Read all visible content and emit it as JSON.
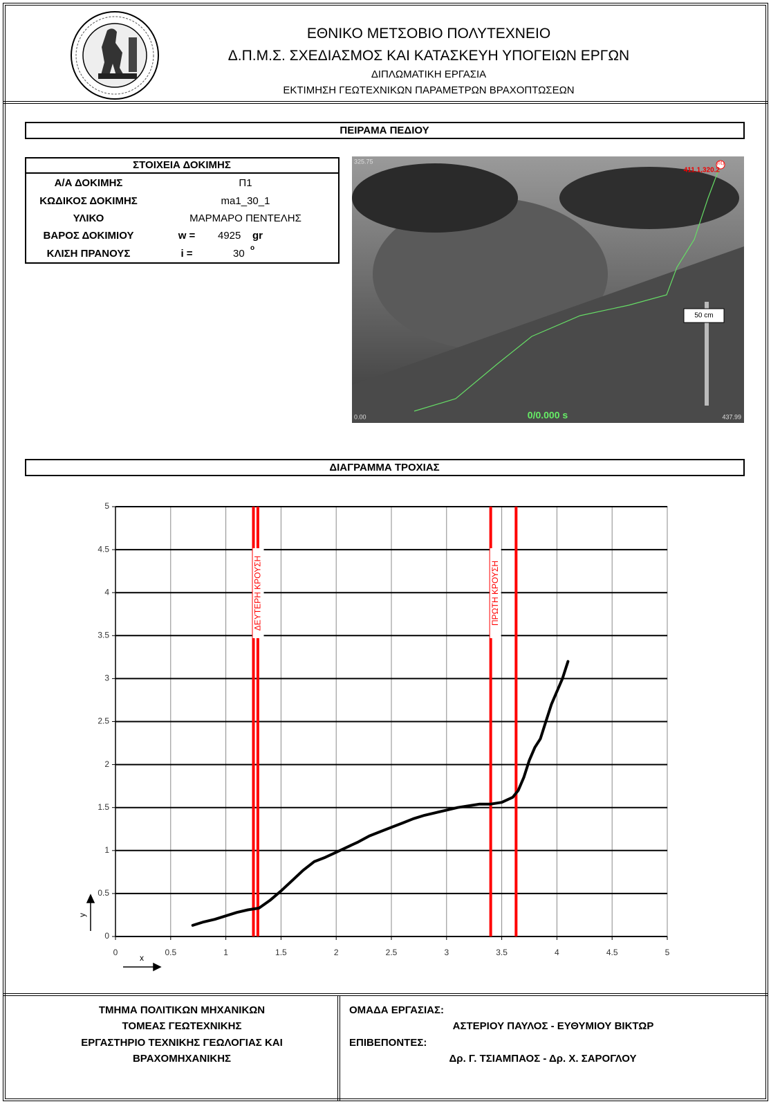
{
  "header": {
    "lines": [
      "ΕΘΝΙΚΟ ΜΕΤΣΟΒΙΟ ΠΟΛΥΤΕΧΝΕΙΟ",
      "Δ.Π.Μ.Σ. ΣΧΕΔΙΑΣΜΟΣ ΚΑΙ ΚΑΤΑΣΚΕΥΗ ΥΠΟΓΕΙΩΝ ΕΡΓΩΝ",
      "ΔΙΠΛΩΜΑΤΙΚΗ ΕΡΓΑΣΙΑ",
      "ΕΚΤΙΜΗΣΗ ΓΕΩΤΕΧΝΙΚΩΝ ΠΑΡΑΜΕΤΡΩΝ ΒΡΑΧΟΠΤΩΣΕΩΝ"
    ]
  },
  "field_section": {
    "title": "ΠΕΙΡΑΜΑ ΠΕΔΙΟΥ"
  },
  "test_table": {
    "title": "ΣΤΟΙΧΕΙΑ ΔΟΚΙΜΗΣ",
    "rows": [
      [
        "Α/Α ΔΟΚΙΜΗΣ",
        "Π1"
      ],
      [
        "ΚΩΔΙΚΟΣ ΔΟΚΙΜΗΣ",
        "ma1_30_1"
      ],
      [
        "ΥΛΙΚΟ",
        "ΜΑΡΜΑΡΟ ΠΕΝΤΕΛΗΣ"
      ],
      [
        "ΒΑΡΟΣ ΔΟΚΙΜΙΟΥ",
        "w =",
        "4925",
        "gr"
      ],
      [
        "ΚΛΙΣΗ ΠΡΑΝΟΥΣ",
        "i =",
        "30",
        "o"
      ]
    ]
  },
  "photo": {
    "top_left": "325.75",
    "marker": "(01)",
    "point": "411.1,320.2",
    "scale": "50 cm",
    "bottom_left": "0.00",
    "time": "0/0.000 s",
    "bottom_right": "437.99"
  },
  "chart_section": {
    "title": "ΔΙΑΓΡΑΜΜΑ ΤΡΟΧΙΑΣ"
  },
  "chart_data": {
    "type": "line",
    "color": "#000000",
    "x": [
      0.7,
      0.8,
      0.9,
      1.0,
      1.1,
      1.2,
      1.3,
      1.4,
      1.5,
      1.6,
      1.7,
      1.8,
      1.9,
      2.0,
      2.1,
      2.2,
      2.3,
      2.4,
      2.5,
      2.6,
      2.7,
      2.8,
      2.9,
      3.0,
      3.1,
      3.2,
      3.3,
      3.4,
      3.5,
      3.6,
      3.65,
      3.7,
      3.75,
      3.8,
      3.85,
      3.9,
      3.95,
      4.0,
      4.05,
      4.1
    ],
    "values": [
      0.13,
      0.17,
      0.2,
      0.24,
      0.28,
      0.31,
      0.33,
      0.42,
      0.53,
      0.65,
      0.77,
      0.87,
      0.92,
      0.98,
      1.04,
      1.1,
      1.17,
      1.22,
      1.27,
      1.32,
      1.37,
      1.41,
      1.44,
      1.47,
      1.5,
      1.52,
      1.54,
      1.54,
      1.56,
      1.62,
      1.7,
      1.85,
      2.05,
      2.2,
      2.3,
      2.5,
      2.7,
      2.85,
      3.0,
      3.2
    ],
    "xlim": [
      0,
      5
    ],
    "ylim": [
      0,
      5
    ],
    "xticks": [
      0,
      0.5,
      1,
      1.5,
      2,
      2.5,
      3,
      3.5,
      4,
      4.5,
      5
    ],
    "yticks": [
      0,
      0.5,
      1,
      1.5,
      2,
      2.5,
      3,
      3.5,
      4,
      4.5,
      5
    ],
    "x_label": "x",
    "y_label": "y",
    "grid": true,
    "annotations": [
      {
        "text": "ΔΕΥΤΕΡΗ ΚΡΟΥΣΗ",
        "x": [
          1.25,
          1.29
        ],
        "color": "#ff0000"
      },
      {
        "text": "ΠΡΩΤΗ ΚΡΟΥΣΗ",
        "x": [
          3.4,
          3.63
        ],
        "color": "#ff0000"
      }
    ]
  },
  "footer": {
    "department": [
      "ΤΜΗΜΑ ΠΟΛΙΤΙΚΩΝ ΜΗΧΑΝΙΚΩΝ",
      "ΤΟΜΕΑΣ ΓΕΩΤΕΧΝΙΚΗΣ",
      "ΕΡΓΑΣΤΗΡΙΟ ΤΕΧΝΙΚΗΣ ΓΕΩΛΟΓΙΑΣ ΚΑΙ",
      "ΒΡΑΧΟΜΗΧΑΝΙΚΗΣ"
    ],
    "team_label": "ΟΜΑΔΑ ΕΡΓΑΣΙΑΣ:",
    "team": "ΑΣΤΕΡΙΟΥ ΠΑΥΛΟΣ - ΕΥΘΥΜΙΟΥ ΒΙΚΤΩΡ",
    "supervisors_label": "ΕΠΙΒΕΠΟΝΤΕΣ:",
    "supervisors": "Δρ. Γ. ΤΣΙΑΜΠΑΟΣ - Δρ. Χ. ΣΑΡΟΓΛΟΥ"
  }
}
